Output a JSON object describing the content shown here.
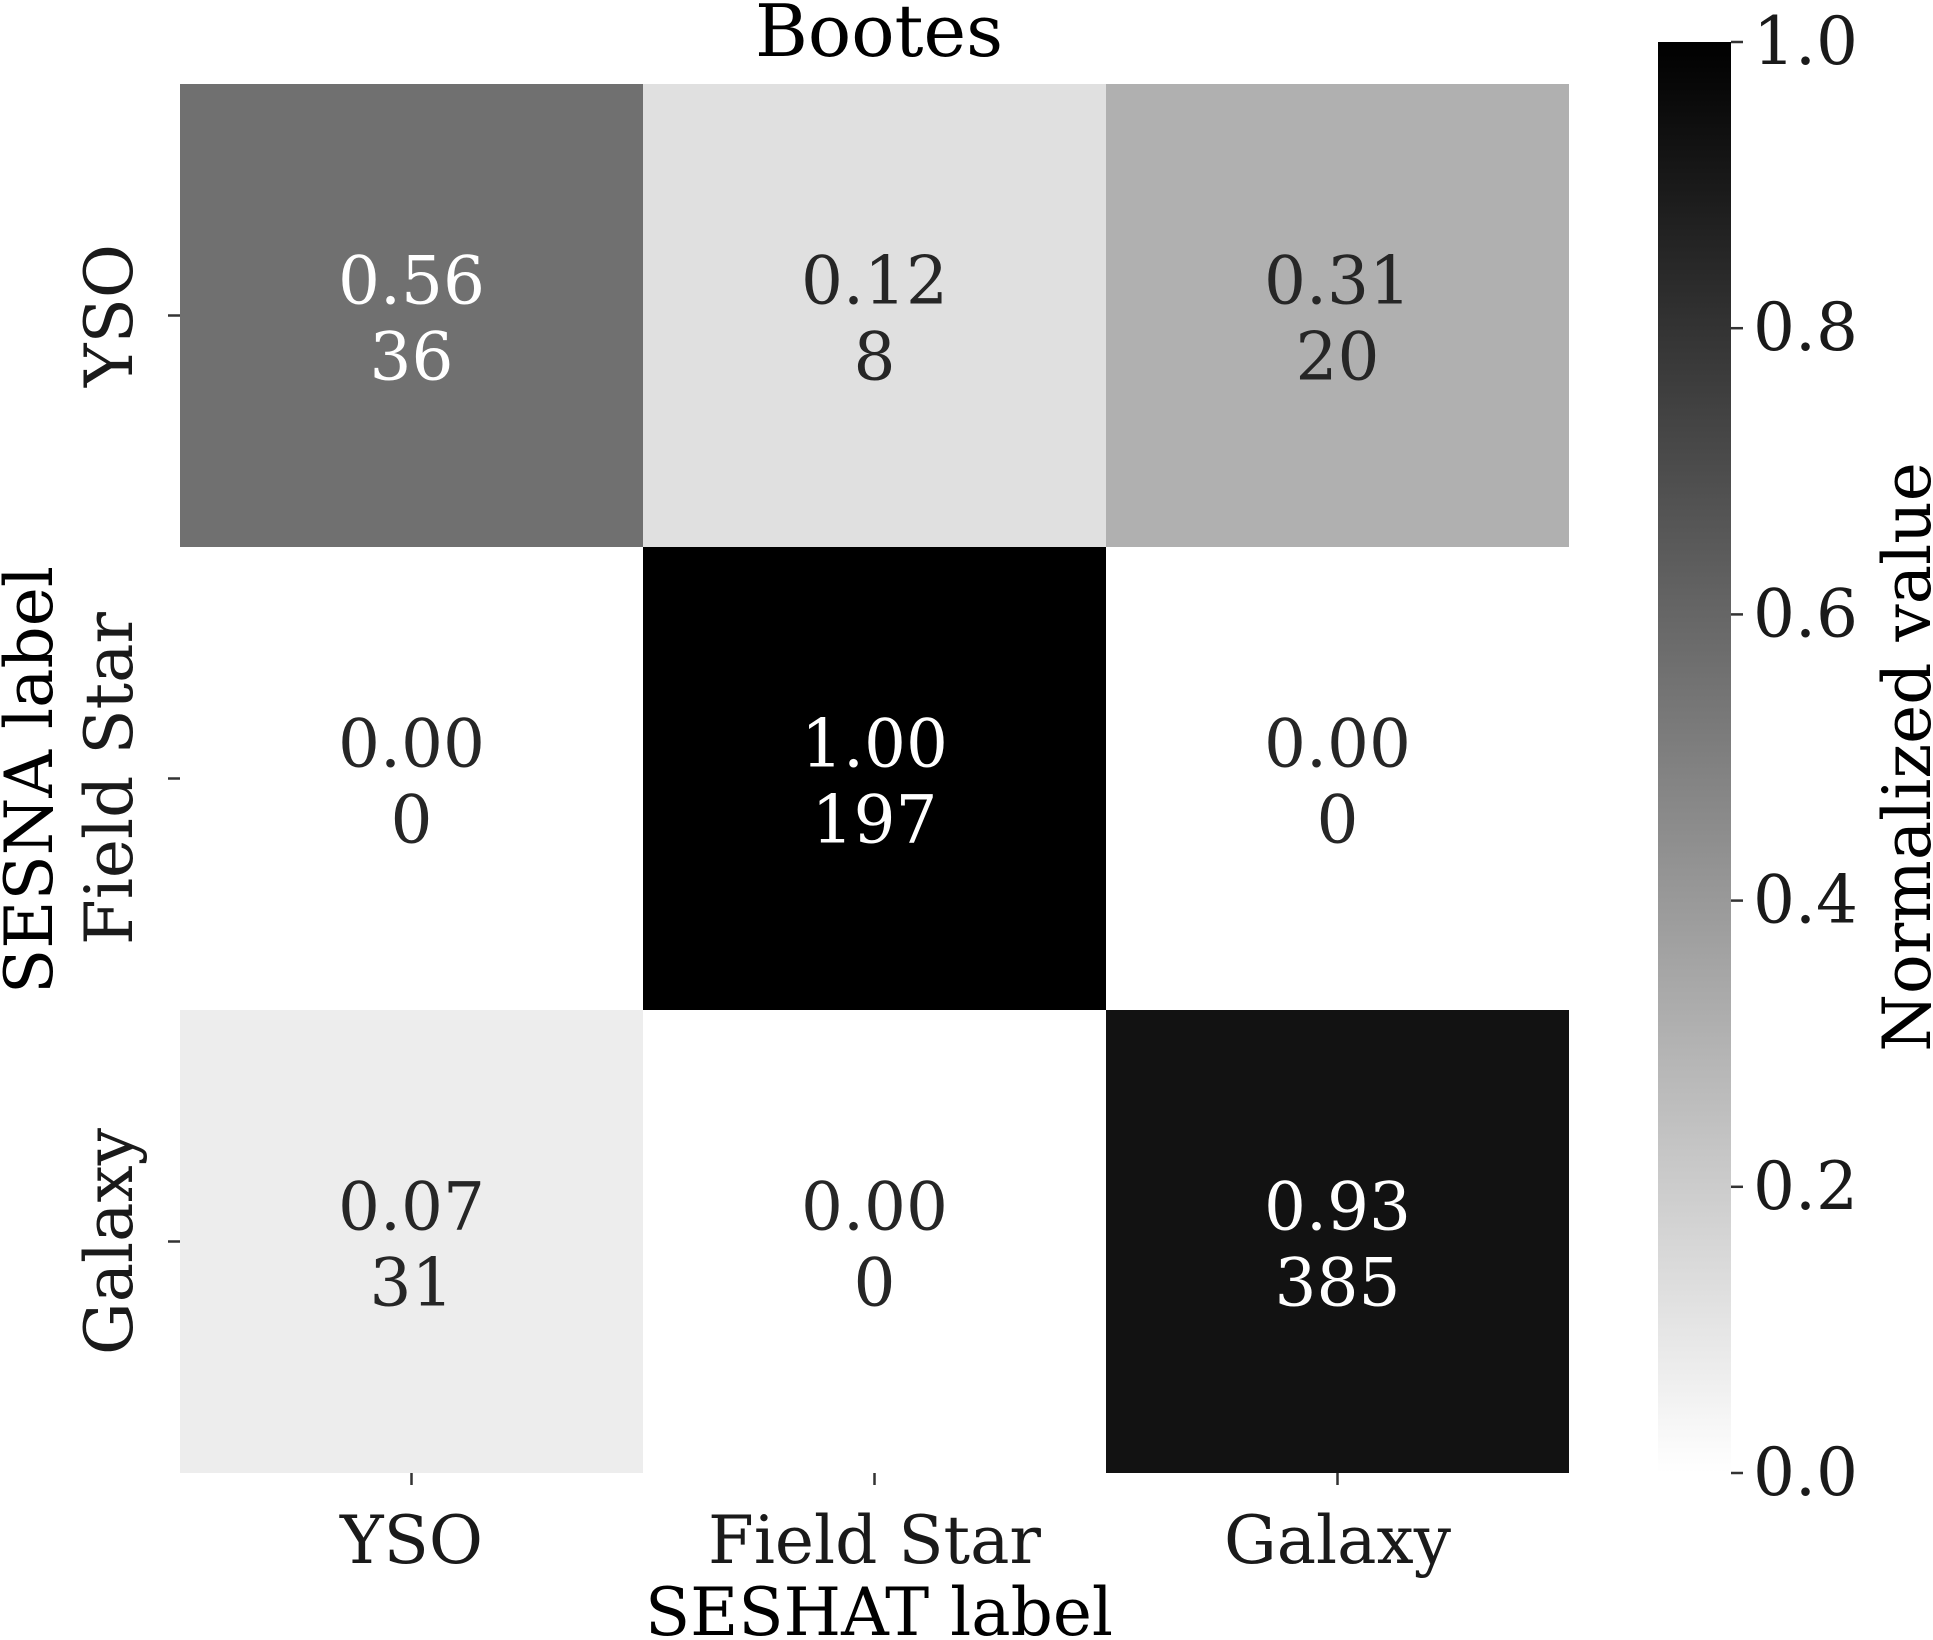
{
  "chart_data": {
    "type": "heatmap",
    "title": "Bootes",
    "xlabel": "SESHAT label",
    "ylabel": "SESNA label",
    "x_categories": [
      "YSO",
      "Field Star",
      "Galaxy"
    ],
    "y_categories": [
      "YSO",
      "Field Star",
      "Galaxy"
    ],
    "normalized": [
      [
        0.56,
        0.12,
        0.31
      ],
      [
        0.0,
        1.0,
        0.0
      ],
      [
        0.07,
        0.0,
        0.93
      ]
    ],
    "normalized_labels": [
      [
        "0.56",
        "0.12",
        "0.31"
      ],
      [
        "0.00",
        "1.00",
        "0.00"
      ],
      [
        "0.07",
        "0.00",
        "0.93"
      ]
    ],
    "counts": [
      [
        36,
        8,
        20
      ],
      [
        0,
        197,
        0
      ],
      [
        31,
        0,
        385
      ]
    ],
    "colorbar": {
      "label": "Normalized value",
      "range": [
        0.0,
        1.0
      ],
      "ticks": [
        "0.0",
        "0.2",
        "0.4",
        "0.6",
        "0.8",
        "1.0"
      ],
      "colormap": "Greys",
      "low_color": "#ffffff",
      "high_color": "#000000"
    }
  }
}
